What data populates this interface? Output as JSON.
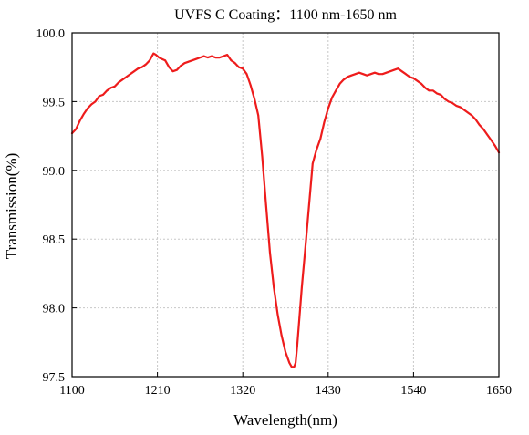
{
  "chart_data": {
    "type": "line",
    "title": "UVFS C Coating：1100 nm-1650 nm",
    "xlabel": "Wavelength(nm)",
    "ylabel": "Transmission(%)",
    "xlim": [
      1100,
      1650
    ],
    "ylim": [
      97.5,
      100.0
    ],
    "x_ticks": [
      1100,
      1210,
      1320,
      1430,
      1540,
      1650
    ],
    "x_tick_labels": [
      "1100",
      "1210",
      "1320",
      "1430",
      "1540",
      "1650"
    ],
    "y_ticks": [
      97.5,
      98.0,
      98.5,
      99.0,
      99.5,
      100.0
    ],
    "y_tick_labels": [
      "97.5",
      "98.0",
      "98.5",
      "99.0",
      "99.5",
      "100.0"
    ],
    "grid": true,
    "legend": "none",
    "series": [
      {
        "color": "#ee1c1c",
        "x": [
          1100,
          1105,
          1110,
          1115,
          1120,
          1125,
          1130,
          1135,
          1140,
          1145,
          1150,
          1155,
          1160,
          1165,
          1170,
          1175,
          1180,
          1185,
          1190,
          1195,
          1200,
          1205,
          1208,
          1212,
          1216,
          1220,
          1225,
          1230,
          1235,
          1240,
          1245,
          1250,
          1255,
          1260,
          1265,
          1270,
          1275,
          1280,
          1285,
          1290,
          1295,
          1300,
          1305,
          1310,
          1315,
          1320,
          1325,
          1330,
          1335,
          1340,
          1345,
          1350,
          1355,
          1360,
          1365,
          1370,
          1375,
          1380,
          1383,
          1386,
          1388,
          1390,
          1393,
          1396,
          1400,
          1405,
          1410,
          1415,
          1420,
          1425,
          1430,
          1435,
          1440,
          1445,
          1450,
          1455,
          1460,
          1465,
          1470,
          1475,
          1480,
          1485,
          1490,
          1495,
          1500,
          1505,
          1510,
          1515,
          1520,
          1525,
          1530,
          1535,
          1540,
          1545,
          1550,
          1555,
          1560,
          1565,
          1570,
          1575,
          1580,
          1585,
          1590,
          1595,
          1600,
          1605,
          1610,
          1615,
          1620,
          1625,
          1630,
          1635,
          1640,
          1645,
          1650
        ],
        "values": [
          99.27,
          99.3,
          99.36,
          99.41,
          99.45,
          99.48,
          99.5,
          99.54,
          99.55,
          99.58,
          99.6,
          99.61,
          99.64,
          99.66,
          99.68,
          99.7,
          99.72,
          99.74,
          99.75,
          99.77,
          99.8,
          99.85,
          99.84,
          99.82,
          99.81,
          99.8,
          99.75,
          99.72,
          99.73,
          99.76,
          99.78,
          99.79,
          99.8,
          99.81,
          99.82,
          99.83,
          99.82,
          99.83,
          99.82,
          99.82,
          99.83,
          99.84,
          99.8,
          99.78,
          99.75,
          99.74,
          99.7,
          99.62,
          99.52,
          99.4,
          99.1,
          98.75,
          98.4,
          98.15,
          97.95,
          97.8,
          97.68,
          97.6,
          97.57,
          97.57,
          97.6,
          97.72,
          97.93,
          98.15,
          98.4,
          98.72,
          99.05,
          99.15,
          99.23,
          99.35,
          99.45,
          99.53,
          99.58,
          99.63,
          99.66,
          99.68,
          99.69,
          99.7,
          99.71,
          99.7,
          99.69,
          99.7,
          99.71,
          99.7,
          99.7,
          99.71,
          99.72,
          99.73,
          99.74,
          99.72,
          99.7,
          99.68,
          99.67,
          99.65,
          99.63,
          99.6,
          99.58,
          99.58,
          99.56,
          99.55,
          99.52,
          99.5,
          99.49,
          99.47,
          99.46,
          99.44,
          99.42,
          99.4,
          99.37,
          99.33,
          99.3,
          99.26,
          99.22,
          99.18,
          99.13
        ]
      }
    ]
  }
}
